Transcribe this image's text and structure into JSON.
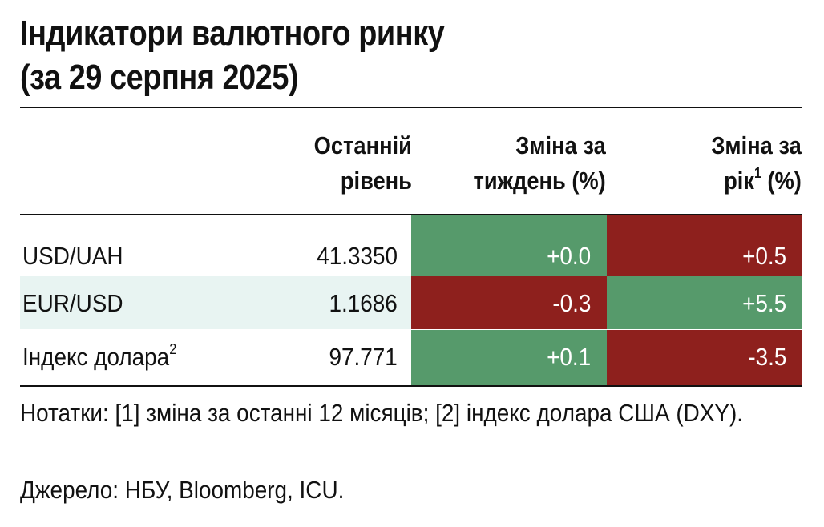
{
  "title": {
    "line1": "Індикатори валютного ринку",
    "line2": "(за 29 серпня 2025)"
  },
  "columns": {
    "level": {
      "line1": "Останній",
      "line2": "рівень"
    },
    "week": {
      "line1": "Зміна за",
      "line2": "тиждень (%)"
    },
    "year": {
      "line1": "Зміна за",
      "line2_pre": "рік",
      "line2_sup": "1",
      "line2_post": " (%)"
    }
  },
  "colors": {
    "positive": "#569a6b",
    "negative": "#8e201d",
    "row_band": "#e8f4f2"
  },
  "rows": [
    {
      "label": "USD/UAH",
      "label_sup": "",
      "level": "41.3350",
      "week": "+0.0",
      "week_sign": "positive",
      "year": "+0.5",
      "year_sign": "negative"
    },
    {
      "label": "EUR/USD",
      "label_sup": "",
      "level": "1.1686",
      "week": "-0.3",
      "week_sign": "negative",
      "year": "+5.5",
      "year_sign": "positive"
    },
    {
      "label": "Індекс долара",
      "label_sup": "2",
      "level": "97.771",
      "week": "+0.1",
      "week_sign": "positive",
      "year": "-3.5",
      "year_sign": "negative"
    }
  ],
  "notes": "Нотатки: [1] зміна за останні 12 місяців; [2] індекс долара США (DXY).",
  "source": "Джерело: НБУ, Bloomberg, ICU."
}
